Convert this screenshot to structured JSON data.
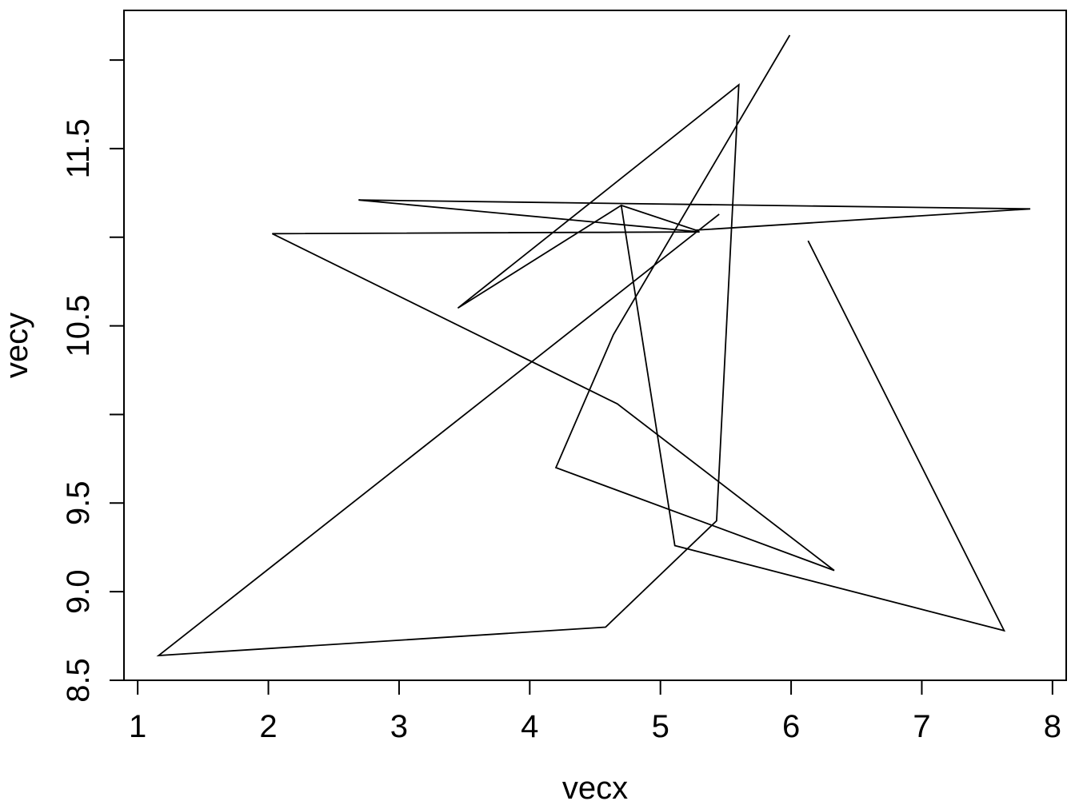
{
  "chart_data": {
    "type": "line",
    "title": "",
    "xlabel": "vecx",
    "ylabel": "vecy",
    "xlim": [
      0.895,
      8.105
    ],
    "ylim": [
      8.5,
      12.28
    ],
    "x_ticks": [
      1,
      2,
      3,
      4,
      5,
      6,
      7,
      8
    ],
    "x_tick_labels": [
      "1",
      "2",
      "3",
      "4",
      "5",
      "6",
      "7",
      "8"
    ],
    "y_ticks": [
      8.5,
      9.0,
      9.5,
      10.0,
      10.5,
      11.0,
      11.5,
      12.0
    ],
    "y_tick_labels": [
      "8.5",
      "9.0",
      "9.5",
      "",
      "10.5",
      "",
      "11.5",
      ""
    ],
    "grid": false,
    "legend": "none",
    "line_color": "#000000",
    "series": [
      {
        "x": [
          5.99,
          4.64,
          4.2,
          6.33,
          4.67,
          2.03,
          5.3,
          2.69,
          7.83,
          5.27,
          4.7,
          3.45,
          5.6,
          5.43,
          4.58,
          1.16,
          5.45
        ],
        "y": [
          12.14,
          10.45,
          9.7,
          9.12,
          10.06,
          11.02,
          11.03,
          11.21,
          11.16,
          11.04,
          11.18,
          10.6,
          11.86,
          9.4,
          8.8,
          8.64,
          11.13
        ]
      },
      {
        "x": [
          6.13,
          7.63,
          5.11,
          4.7
        ],
        "y": [
          10.98,
          8.78,
          9.26,
          11.18
        ]
      }
    ]
  }
}
